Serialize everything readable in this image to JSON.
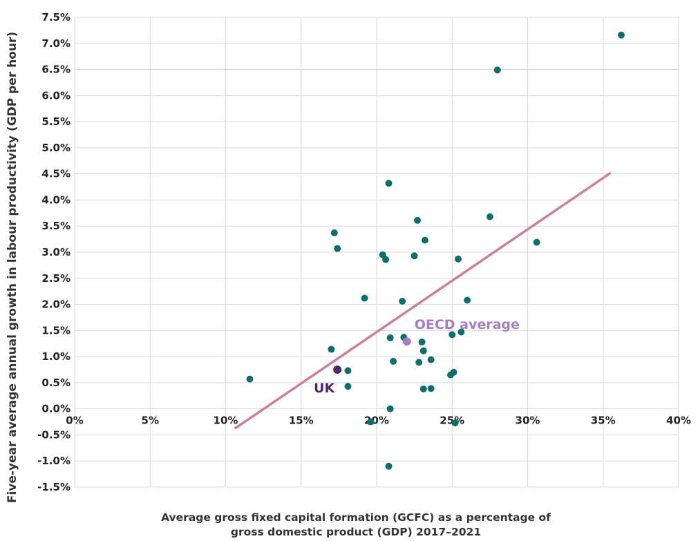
{
  "chart_data": {
    "type": "scatter",
    "xlabel_lines": [
      "Average gross fixed capital formation (GCFC) as a percentage of",
      "gross domestic product (GDP) 2017–2021"
    ],
    "ylabel": "Five-year average annual growth in labour productivity (GDP per hour)",
    "xlim": [
      0,
      40
    ],
    "ylim": [
      -1.5,
      7.5
    ],
    "x_ticks": [
      0,
      5,
      10,
      15,
      20,
      25,
      30,
      35,
      40
    ],
    "x_tick_labels": [
      "0%",
      "5%",
      "10%",
      "15%",
      "20%",
      "25%",
      "30%",
      "35%",
      "40%"
    ],
    "y_ticks": [
      -1.5,
      -1.0,
      -0.5,
      0.0,
      0.5,
      1.0,
      1.5,
      2.0,
      2.5,
      3.0,
      3.5,
      4.0,
      4.5,
      5.0,
      5.5,
      6.0,
      6.5,
      7.0,
      7.5
    ],
    "y_tick_labels": [
      "-1.5%",
      "-1.0%",
      "-0.5%",
      "0.0%",
      "0.5%",
      "1.0%",
      "1.5%",
      "2.0%",
      "2.5%",
      "3.0%",
      "3.5%",
      "4.0%",
      "4.5%",
      "5.0%",
      "5.5%",
      "6.0%",
      "6.5%",
      "7.0%",
      "7.5%"
    ],
    "grid": true,
    "colors": {
      "points": "#0e6e6e",
      "trend": "#cc7f9c",
      "uk": "#4d2a6e",
      "oecd": "#a57dc4",
      "grid": "#d9d9d9"
    },
    "points": [
      {
        "x": 11.6,
        "y": 0.57
      },
      {
        "x": 17.0,
        "y": 1.14
      },
      {
        "x": 17.2,
        "y": 3.37
      },
      {
        "x": 17.4,
        "y": 3.07
      },
      {
        "x": 18.1,
        "y": 0.43
      },
      {
        "x": 18.1,
        "y": 0.73
      },
      {
        "x": 19.2,
        "y": 2.12
      },
      {
        "x": 19.6,
        "y": -0.25
      },
      {
        "x": 20.4,
        "y": 2.95
      },
      {
        "x": 20.6,
        "y": 2.86
      },
      {
        "x": 20.8,
        "y": 4.32
      },
      {
        "x": 20.9,
        "y": 1.36
      },
      {
        "x": 20.9,
        "y": 0.0
      },
      {
        "x": 20.8,
        "y": -1.1
      },
      {
        "x": 21.1,
        "y": 0.91
      },
      {
        "x": 21.7,
        "y": 2.06
      },
      {
        "x": 21.8,
        "y": 1.37
      },
      {
        "x": 22.5,
        "y": 2.93
      },
      {
        "x": 22.7,
        "y": 3.61
      },
      {
        "x": 22.8,
        "y": 0.89
      },
      {
        "x": 23.0,
        "y": 1.28
      },
      {
        "x": 23.1,
        "y": 1.11
      },
      {
        "x": 23.1,
        "y": 0.38
      },
      {
        "x": 23.2,
        "y": 3.23
      },
      {
        "x": 23.6,
        "y": 0.94
      },
      {
        "x": 23.6,
        "y": 0.39
      },
      {
        "x": 24.9,
        "y": 0.65
      },
      {
        "x": 25.0,
        "y": 1.42
      },
      {
        "x": 25.1,
        "y": 0.7
      },
      {
        "x": 25.2,
        "y": -0.27
      },
      {
        "x": 25.4,
        "y": 2.87
      },
      {
        "x": 25.6,
        "y": 1.47
      },
      {
        "x": 26.0,
        "y": 2.08
      },
      {
        "x": 27.5,
        "y": 3.68
      },
      {
        "x": 28.0,
        "y": 6.49
      },
      {
        "x": 30.6,
        "y": 3.19
      },
      {
        "x": 36.2,
        "y": 7.16
      }
    ],
    "uk_point": {
      "x": 17.4,
      "y": 0.75,
      "label": "UK"
    },
    "oecd_point": {
      "x": 22.0,
      "y": 1.29,
      "label": "OECD average"
    },
    "trendline": {
      "x1": 10.6,
      "y1": -0.38,
      "x2": 35.5,
      "y2": 4.52
    }
  }
}
